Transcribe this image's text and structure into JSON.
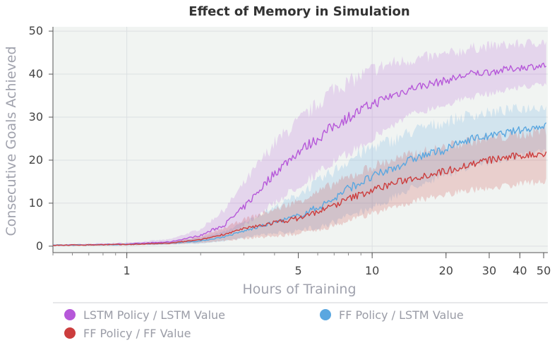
{
  "chart_data": {
    "type": "line",
    "title": "Effect of Memory in Simulation",
    "xlabel": "Hours of Training",
    "ylabel": "Consecutive Goals Achieved",
    "xscale": "log",
    "xlim": [
      0.5,
      52
    ],
    "ylim": [
      -1.5,
      51
    ],
    "x_ticks": [
      1,
      5,
      10,
      20,
      30,
      40,
      50
    ],
    "x_tick_labels": [
      "1",
      "5",
      "10",
      "20",
      "30",
      "40",
      "50"
    ],
    "y_ticks": [
      0,
      10,
      20,
      30,
      40,
      50
    ],
    "y_tick_labels": [
      "0",
      "10",
      "20",
      "30",
      "40",
      "50"
    ],
    "grid": true,
    "legend_position": "bottom",
    "x": [
      0.5,
      1,
      1.5,
      2,
      2.5,
      3,
      4,
      5,
      6,
      7,
      8,
      10,
      12,
      15,
      20,
      25,
      30,
      40,
      50
    ],
    "series": [
      {
        "name": "LSTM Policy / LSTM Value",
        "color": "#b658d9",
        "values": [
          0.2,
          0.5,
          1.0,
          2.5,
          5.0,
          9.0,
          17.0,
          22.0,
          25.0,
          28.0,
          30.0,
          33.0,
          35.0,
          37.0,
          38.5,
          40.0,
          40.5,
          41.5,
          42.0
        ],
        "lower": [
          0.1,
          0.3,
          0.6,
          1.3,
          2.5,
          5.0,
          10.0,
          14.0,
          17.0,
          19.5,
          21.5,
          25.0,
          28.0,
          31.0,
          33.0,
          34.5,
          35.5,
          37.0,
          37.5
        ],
        "upper": [
          0.3,
          0.8,
          1.6,
          4.0,
          8.5,
          14.5,
          24.0,
          29.0,
          33.0,
          37.0,
          38.0,
          41.0,
          42.5,
          43.5,
          44.5,
          46.0,
          46.5,
          47.0,
          47.5
        ]
      },
      {
        "name": "FF Policy / LSTM Value",
        "color": "#5aa7e0",
        "values": [
          0.2,
          0.4,
          0.7,
          1.2,
          2.2,
          3.5,
          5.5,
          7.0,
          9.0,
          11.0,
          13.5,
          16.0,
          18.0,
          20.5,
          22.5,
          25.0,
          25.5,
          27.0,
          28.0
        ],
        "lower": [
          0.1,
          0.2,
          0.4,
          0.6,
          1.2,
          2.0,
          3.0,
          3.5,
          4.5,
          5.5,
          7.0,
          9.0,
          11.0,
          14.0,
          16.5,
          18.5,
          19.5,
          21.0,
          22.0
        ],
        "upper": [
          0.3,
          0.6,
          1.0,
          1.9,
          3.4,
          5.5,
          9.0,
          12.0,
          15.0,
          17.5,
          20.0,
          23.0,
          24.5,
          27.0,
          29.0,
          30.5,
          31.0,
          32.0,
          32.5
        ]
      },
      {
        "name": "FF Policy / FF Value",
        "color": "#cc3d3d",
        "values": [
          0.2,
          0.4,
          0.7,
          1.5,
          2.8,
          4.0,
          5.5,
          6.5,
          8.0,
          9.5,
          11.0,
          13.0,
          14.5,
          16.0,
          17.5,
          19.0,
          20.0,
          21.0,
          21.5
        ],
        "lower": [
          0.1,
          0.2,
          0.4,
          0.8,
          1.3,
          1.8,
          2.3,
          2.8,
          3.8,
          4.8,
          6.0,
          7.5,
          9.0,
          10.5,
          12.0,
          13.0,
          13.5,
          14.5,
          15.0
        ],
        "upper": [
          0.3,
          0.6,
          1.0,
          2.2,
          4.2,
          6.2,
          8.5,
          10.5,
          12.5,
          14.5,
          16.0,
          18.5,
          20.0,
          21.5,
          23.0,
          24.5,
          25.0,
          26.0,
          27.0
        ]
      }
    ]
  }
}
